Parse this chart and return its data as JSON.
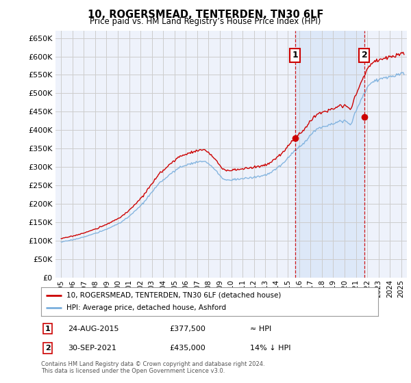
{
  "title": "10, ROGERSMEAD, TENTERDEN, TN30 6LF",
  "subtitle": "Price paid vs. HM Land Registry’s House Price Index (HPI)",
  "ylabel_ticks": [
    0,
    50000,
    100000,
    150000,
    200000,
    250000,
    300000,
    350000,
    400000,
    450000,
    500000,
    550000,
    600000,
    650000
  ],
  "ylim": [
    0,
    670000
  ],
  "xlim_start": 1994.5,
  "xlim_end": 2025.5,
  "background_color": "#ffffff",
  "plot_bg_color": "#eef2fb",
  "grid_color": "#cccccc",
  "shade_color": "#dde8f8",
  "red_line_color": "#cc0000",
  "blue_line_color": "#7aafdd",
  "vline_color": "#cc0000",
  "sale1_x": 2015.644,
  "sale1_y": 377500,
  "sale2_x": 2021.747,
  "sale2_y": 435000,
  "sale1_label": "1",
  "sale2_label": "2",
  "sale1_date": "24-AUG-2015",
  "sale1_price": "£377,500",
  "sale1_hpi": "≈ HPI",
  "sale2_date": "30-SEP-2021",
  "sale2_price": "£435,000",
  "sale2_hpi": "14% ↓ HPI",
  "legend_line1": "10, ROGERSMEAD, TENTERDEN, TN30 6LF (detached house)",
  "legend_line2": "HPI: Average price, detached house, Ashford",
  "footer": "Contains HM Land Registry data © Crown copyright and database right 2024.\nThis data is licensed under the Open Government Licence v3.0."
}
